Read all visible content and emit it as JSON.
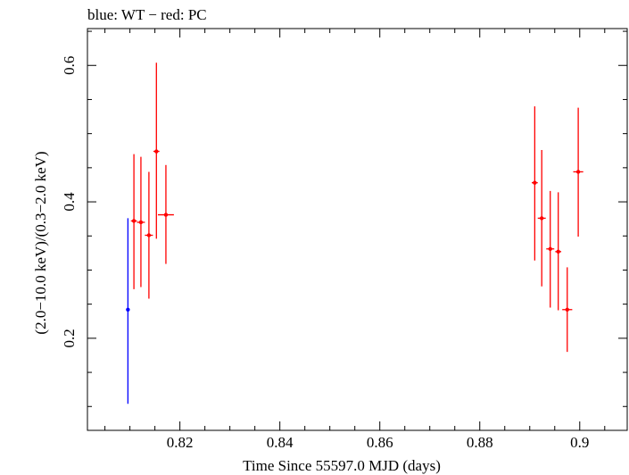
{
  "chart_data": {
    "type": "scatter",
    "title": "blue: WT − red: PC",
    "xlabel": "Time Since 55597.0 MJD (days)",
    "ylabel": "(2.0−10.0 keV)/(0.3−2.0 keV)",
    "xlim": [
      0.8015,
      0.9095
    ],
    "ylim": [
      0.065,
      0.654
    ],
    "x_ticks": [
      0.82,
      0.84,
      0.86,
      0.88,
      0.9
    ],
    "x_tick_labels": [
      "0.82",
      "0.84",
      "0.86",
      "0.88",
      "0.9"
    ],
    "y_ticks": [
      0.2,
      0.4,
      0.6
    ],
    "y_tick_labels": [
      "0.2",
      "0.4",
      "0.6"
    ],
    "grid": false,
    "series": [
      {
        "color": "#0000ff",
        "points": [
          {
            "x": 0.8096,
            "y": 0.242,
            "xerr": 0.0,
            "ylo": 0.104,
            "yhi": 0.376
          }
        ]
      },
      {
        "color": "#ff0000",
        "points": [
          {
            "x": 0.8108,
            "y": 0.372,
            "xerr": 0.0006,
            "ylo": 0.272,
            "yhi": 0.47
          },
          {
            "x": 0.8122,
            "y": 0.37,
            "xerr": 0.0008,
            "ylo": 0.275,
            "yhi": 0.466
          },
          {
            "x": 0.8138,
            "y": 0.351,
            "xerr": 0.0008,
            "ylo": 0.258,
            "yhi": 0.444
          },
          {
            "x": 0.8153,
            "y": 0.474,
            "xerr": 0.0006,
            "ylo": 0.346,
            "yhi": 0.604
          },
          {
            "x": 0.8172,
            "y": 0.381,
            "xerr": 0.0016,
            "ylo": 0.309,
            "yhi": 0.454
          },
          {
            "x": 0.891,
            "y": 0.428,
            "xerr": 0.0006,
            "ylo": 0.314,
            "yhi": 0.54
          },
          {
            "x": 0.8924,
            "y": 0.376,
            "xerr": 0.0008,
            "ylo": 0.276,
            "yhi": 0.476
          },
          {
            "x": 0.8941,
            "y": 0.331,
            "xerr": 0.0008,
            "ylo": 0.245,
            "yhi": 0.416
          },
          {
            "x": 0.8957,
            "y": 0.327,
            "xerr": 0.0006,
            "ylo": 0.241,
            "yhi": 0.414
          },
          {
            "x": 0.8975,
            "y": 0.242,
            "xerr": 0.001,
            "ylo": 0.18,
            "yhi": 0.304
          },
          {
            "x": 0.8997,
            "y": 0.444,
            "xerr": 0.001,
            "ylo": 0.349,
            "yhi": 0.538
          }
        ]
      }
    ]
  }
}
